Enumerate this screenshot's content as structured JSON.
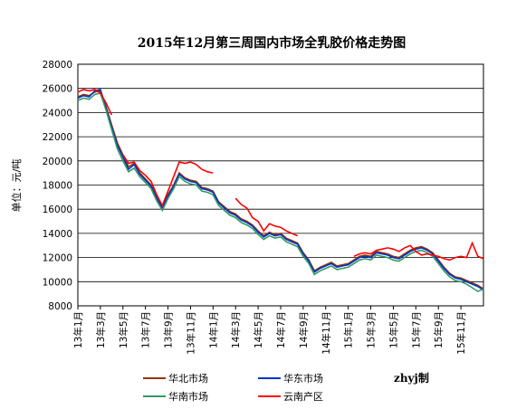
{
  "chart_data": {
    "type": "line",
    "title": "2015年12月第三周国内市场全乳胶价格走势图",
    "ylabel": "单位：元/吨",
    "ylim": [
      8000,
      28000
    ],
    "yticks": [
      "8000",
      "10000",
      "12000",
      "14000",
      "16000",
      "18000",
      "20000",
      "22000",
      "24000",
      "26000",
      "28000"
    ],
    "x_ticklabels": [
      "13年1月",
      "13年3月",
      "13年5月",
      "13年7月",
      "13年9月",
      "13年11月",
      "14年1月",
      "14年3月",
      "14年5月",
      "14年7月",
      "14年9月",
      "14年11月",
      "15年1月",
      "15年3月",
      "15年5月",
      "15年7月",
      "15年9月",
      "15年11月"
    ],
    "x_range": [
      0,
      36
    ],
    "grid": true,
    "legend_position": "bottom",
    "watermark": "zhyj制",
    "series": [
      {
        "name": "华北市场",
        "color": "#993300",
        "x": [
          0,
          0.5,
          1,
          1.5,
          2,
          2.5,
          3,
          3.5,
          4,
          4.5,
          5,
          5.5,
          6,
          6.5,
          7,
          7.5,
          8,
          8.5,
          9,
          9.5,
          10,
          10.5,
          11,
          11.5,
          12,
          12.5,
          13,
          13.5,
          14,
          14.5,
          15,
          15.5,
          16,
          16.5,
          17,
          17.5,
          18,
          18.5,
          19,
          19.5,
          20,
          20.5,
          21,
          21.5,
          22,
          22.5,
          23,
          23.5,
          24,
          24.5,
          25,
          25.5,
          26,
          26.5,
          27,
          27.5,
          28,
          28.5,
          29,
          29.5,
          30,
          30.5,
          31,
          31.5,
          32,
          32.5,
          33,
          33.5,
          34,
          34.5,
          35,
          35.5,
          36
        ],
        "values": [
          25300,
          25500,
          25400,
          25700,
          25800,
          24500,
          23000,
          21500,
          20500,
          19500,
          19800,
          19000,
          18500,
          18000,
          17000,
          16200,
          17200,
          18000,
          19000,
          18600,
          18400,
          18300,
          17800,
          17700,
          17500,
          16600,
          16200,
          15800,
          15600,
          15200,
          15000,
          14700,
          14200,
          13800,
          14100,
          13900,
          14000,
          13600,
          13400,
          13200,
          12400,
          11800,
          10900,
          11200,
          11400,
          11600,
          11300,
          11400,
          11500,
          11800,
          12100,
          12200,
          12100,
          12500,
          12400,
          12300,
          12100,
          12000,
          12300,
          12600,
          12800,
          12900,
          12700,
          12400,
          11800,
          11200,
          10700,
          10400,
          10300,
          10100,
          9900,
          9700,
          9400
        ],
        "visible": true
      },
      {
        "name": "华东市场",
        "color": "#0033CC",
        "x": [
          0,
          0.5,
          1,
          1.5,
          2,
          2.5,
          3,
          3.5,
          4,
          4.5,
          5,
          5.5,
          6,
          6.5,
          7,
          7.5,
          8,
          8.5,
          9,
          9.5,
          10,
          10.5,
          11,
          11.5,
          12,
          12.5,
          13,
          13.5,
          14,
          14.5,
          15,
          15.5,
          16,
          16.5,
          17,
          17.5,
          18,
          18.5,
          19,
          19.5,
          20,
          20.5,
          21,
          21.5,
          22,
          22.5,
          23,
          23.5,
          24,
          24.5,
          25,
          25.5,
          26,
          26.5,
          27,
          27.5,
          28,
          28.5,
          29,
          29.5,
          30,
          30.5,
          31,
          31.5,
          32,
          32.5,
          33,
          33.5,
          34,
          34.5,
          35,
          35.5,
          36
        ],
        "values": [
          25200,
          25400,
          25300,
          25800,
          25900,
          24400,
          22800,
          21300,
          20300,
          19300,
          19700,
          18900,
          18400,
          17900,
          16900,
          16100,
          17100,
          17900,
          18900,
          18500,
          18300,
          18200,
          17700,
          17600,
          17400,
          16500,
          16100,
          15700,
          15500,
          15100,
          14900,
          14600,
          14100,
          13700,
          14000,
          13800,
          13900,
          13500,
          13300,
          13100,
          12300,
          11700,
          10800,
          11100,
          11300,
          11500,
          11200,
          11300,
          11400,
          11700,
          12000,
          12100,
          12000,
          12400,
          12300,
          12200,
          12000,
          11900,
          12200,
          12500,
          12700,
          12800,
          12600,
          12300,
          11700,
          11100,
          10600,
          10300,
          10200,
          10000,
          9800,
          9600,
          9300
        ],
        "visible": true
      },
      {
        "name": "华南市场",
        "color": "#339966",
        "x": [
          0,
          0.5,
          1,
          1.5,
          2,
          2.5,
          3,
          3.5,
          4,
          4.5,
          5,
          5.5,
          6,
          6.5,
          7,
          7.5,
          8,
          8.5,
          9,
          9.5,
          10,
          10.5,
          11,
          11.5,
          12,
          12.5,
          13,
          13.5,
          14,
          14.5,
          15,
          15.5,
          16,
          16.5,
          17,
          17.5,
          18,
          18.5,
          19,
          19.5,
          20,
          20.5,
          21,
          21.5,
          22,
          22.5,
          23,
          23.5,
          24,
          24.5,
          25,
          25.5,
          26,
          26.5,
          27,
          27.5,
          28,
          28.5,
          29,
          29.5,
          30,
          30.5,
          31,
          31.5,
          32,
          32.5,
          33,
          33.5,
          34,
          34.5,
          35,
          35.5,
          36
        ],
        "values": [
          25000,
          25200,
          25100,
          25500,
          25600,
          24200,
          22600,
          21000,
          20000,
          19100,
          19400,
          18700,
          18200,
          17700,
          16700,
          15900,
          16900,
          17700,
          18700,
          18300,
          18100,
          18000,
          17500,
          17400,
          17200,
          16300,
          15900,
          15500,
          15300,
          14900,
          14700,
          14400,
          13900,
          13500,
          13800,
          13600,
          13700,
          13300,
          13100,
          12900,
          12100,
          11500,
          10600,
          10900,
          11100,
          11300,
          11000,
          11100,
          11200,
          11500,
          11800,
          11900,
          11800,
          12200,
          12100,
          12000,
          11800,
          11700,
          12000,
          12300,
          12500,
          12600,
          12400,
          12100,
          11500,
          10900,
          10400,
          10100,
          10000,
          9800,
          9500,
          9200,
          9400
        ],
        "visible": true
      },
      {
        "name": "云南产区",
        "color": "#FF0000",
        "x": [
          0,
          0.5,
          1,
          1.5,
          2,
          2.5,
          3,
          3.5,
          4,
          4.5,
          5,
          5.5,
          6,
          6.5,
          7,
          7.5,
          8,
          8.5,
          9,
          9.5,
          10,
          10.5,
          11,
          11.5,
          12,
          12.5,
          13,
          13.5,
          14,
          14.5,
          15,
          15.5,
          16,
          16.5,
          17,
          17.5,
          18,
          18.5,
          19,
          19.5,
          20,
          20.5,
          21,
          21.5,
          22,
          22.5,
          23,
          23.5,
          24,
          24.5,
          25,
          25.5,
          26,
          26.5,
          27,
          27.5,
          28,
          28.5,
          29,
          29.5,
          30,
          30.5,
          31,
          31.5,
          32,
          32.5,
          33,
          33.5,
          34,
          34.5,
          35,
          35.5,
          36
        ],
        "values": [
          25700,
          25900,
          25800,
          25900,
          25600,
          24800,
          23800,
          null,
          20500,
          19800,
          19900,
          19200,
          18800,
          18300,
          17200,
          16300,
          17500,
          18700,
          19900,
          19800,
          19900,
          19700,
          19300,
          19100,
          19000,
          null,
          null,
          null,
          16900,
          16400,
          16100,
          15300,
          15000,
          14200,
          14800,
          14600,
          14500,
          14200,
          14000,
          13800,
          null,
          null,
          null,
          null,
          12500,
          null,
          null,
          null,
          null,
          12100,
          12300,
          12400,
          12300,
          12600,
          12700,
          12800,
          12700,
          12500,
          12800,
          13000,
          12500,
          12200,
          12300,
          12200,
          12100,
          11900,
          11800,
          12000,
          12100,
          12000,
          13200,
          12100,
          11900
        ],
        "visible": true
      }
    ]
  },
  "legend": [
    {
      "label": "华北市场",
      "color": "#993300"
    },
    {
      "label": "华东市场",
      "color": "#0033CC"
    },
    {
      "label": "华南市场",
      "color": "#339966"
    },
    {
      "label": "云南产区",
      "color": "#FF0000"
    }
  ]
}
